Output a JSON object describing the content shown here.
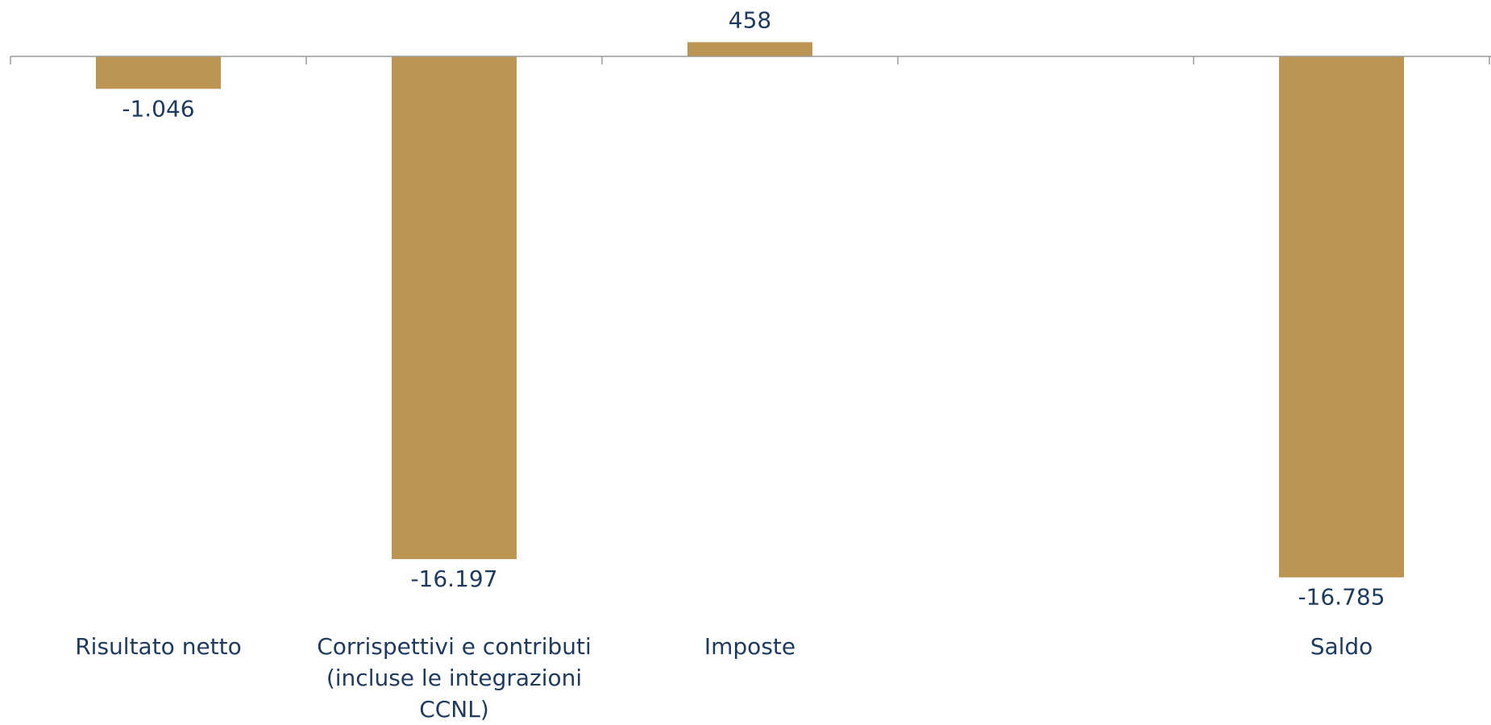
{
  "chart_data": {
    "type": "bar",
    "categories": [
      [
        "Risultato netto"
      ],
      [
        "Corrispettivi e contributi",
        "(incluse le integrazioni",
        "CCNL)"
      ],
      [
        "Imposte"
      ],
      [
        ""
      ],
      [
        "Saldo"
      ]
    ],
    "values": [
      -1046,
      -16197,
      458,
      null,
      -16785
    ],
    "value_labels": [
      "-1.046",
      "-16.197",
      "458",
      "",
      "-16.785"
    ],
    "ylim": [
      -17000,
      500
    ],
    "colors": {
      "bar": "#bd9553",
      "text": "#1f3a5f",
      "axis": "#9a9a9a"
    },
    "title": "",
    "xlabel": "",
    "ylabel": "",
    "grid": false,
    "legend": "none"
  }
}
